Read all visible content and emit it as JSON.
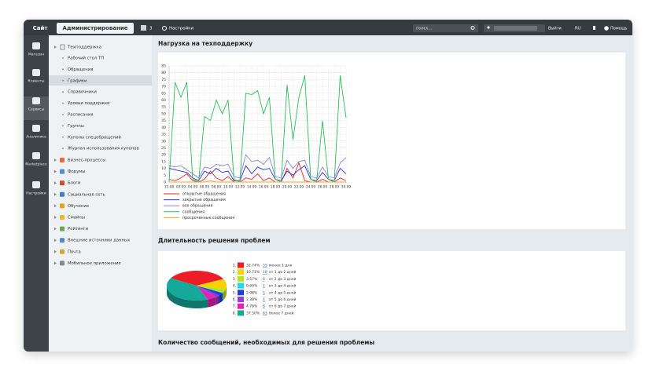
{
  "header": {
    "tab_site": "Сайт",
    "tab_admin": "Администрирование",
    "notifications": "3",
    "settings": "Настройки",
    "search_placeholder": "поиск...",
    "logout": "Выйти",
    "language": "RU",
    "help": "Помощь"
  },
  "sidebar": [
    "Магазин",
    "Клиенты",
    "Сервисы",
    "Аналитика",
    "Marketplace",
    "Настройки"
  ],
  "menu": {
    "root": "Техподдержка",
    "children": [
      "Рабочий стол ТП",
      "Обращения",
      "Графики",
      "Справочники",
      "Уровни поддержки",
      "Расписания",
      "Группы",
      "Купоны спецобращений",
      "Журнал использования купонов"
    ],
    "items": [
      "Бизнес-процессы",
      "Форумы",
      "Блоги",
      "Социальная сеть",
      "Обучение",
      "Смайлы",
      "Рейтинги",
      "Внешние источники данных",
      "Почта",
      "Мобильное приложение"
    ]
  },
  "sections": [
    "Нагрузка на техподдержку",
    "Длительность решения проблем",
    "Количество сообщений, необходимых для решения проблемы"
  ],
  "chart_data": [
    {
      "type": "line",
      "categories": [
        "31.08",
        null,
        "02.09",
        null,
        "04.09",
        null,
        "06.09",
        null,
        "08.09",
        null,
        "10.09",
        null,
        "12.09",
        null,
        "14.09",
        null,
        "16.09",
        null,
        "18.09",
        null,
        "20.09",
        null,
        "22.09",
        null,
        "24.09",
        null,
        "26.09",
        null,
        "28.09",
        null,
        "30.09"
      ],
      "ylim": [
        0,
        85
      ],
      "yticks": [
        0,
        5,
        10,
        15,
        20,
        25,
        30,
        35,
        40,
        45,
        50,
        55,
        60,
        65,
        70,
        75,
        80,
        85
      ],
      "grid": true,
      "series": [
        {
          "name": "открытые обращения",
          "color": "#e8262b",
          "values": [
            2,
            1,
            3,
            6,
            1,
            0,
            2,
            8,
            3,
            1,
            4,
            0,
            0,
            3,
            2,
            6,
            1,
            3,
            0,
            0,
            10,
            3,
            14,
            1,
            0,
            0,
            2,
            0,
            0,
            3,
            1
          ]
        },
        {
          "name": "закрытые обращения",
          "color": "#2b2fd6",
          "values": [
            10,
            9,
            8,
            7,
            3,
            1,
            8,
            6,
            10,
            7,
            8,
            1,
            1,
            12,
            6,
            11,
            9,
            10,
            2,
            1,
            8,
            5,
            9,
            12,
            2,
            1,
            7,
            2,
            1,
            10,
            6
          ]
        },
        {
          "name": "все обращения",
          "color": "#8a86d8",
          "values": [
            12,
            11,
            12,
            9,
            6,
            3,
            11,
            10,
            13,
            12,
            13,
            4,
            3,
            20,
            15,
            16,
            13,
            18,
            4,
            3,
            16,
            10,
            15,
            16,
            4,
            3,
            11,
            4,
            3,
            14,
            18
          ]
        },
        {
          "name": "сообщения",
          "color": "#2ebd5a",
          "values": [
            0,
            73,
            62,
            73,
            2,
            0,
            48,
            45,
            60,
            50,
            60,
            2,
            0,
            65,
            64,
            67,
            50,
            62,
            2,
            0,
            71,
            31,
            62,
            78,
            2,
            0,
            45,
            2,
            0,
            78,
            47
          ]
        },
        {
          "name": "просроченные сообщения",
          "color": "#f5a623",
          "values": [
            0,
            0,
            0,
            0,
            0,
            0,
            0,
            1,
            0,
            0,
            0,
            0,
            0,
            0,
            0,
            0,
            0,
            0,
            0,
            0,
            0,
            0,
            0,
            0,
            0,
            0,
            0,
            0,
            0,
            0,
            0
          ]
        }
      ]
    },
    {
      "type": "pie",
      "numbers": [
        "1.",
        "2.",
        "3.",
        "4.",
        "5.",
        "6.",
        "7.",
        "8."
      ],
      "values": [
        32.74,
        10.71,
        3.57,
        0.6,
        2.98,
        2.38,
        4.76,
        37.5
      ],
      "value_labels": [
        "32.74%",
        "10.71%",
        "3.57%",
        "0.60%",
        "2.98%",
        "2.38%",
        "4.76%",
        "37.50%"
      ],
      "counts": [
        55,
        18,
        6,
        1,
        5,
        4,
        8,
        63
      ],
      "categories": [
        "менее 1 дня",
        "от 1 до 2 дней",
        "от 2 до 3 дней",
        "от 3 до 4 дней",
        "от 4 до 5 дней",
        "от 5 до 6 дней",
        "от 6 до 7 дней",
        "более 7 дней"
      ],
      "colors": [
        "#ee1c24",
        "#f7d200",
        "#b5e61d",
        "#22d8e8",
        "#1f3de0",
        "#9a3dc8",
        "#e81fb4",
        "#14a99a"
      ]
    }
  ]
}
